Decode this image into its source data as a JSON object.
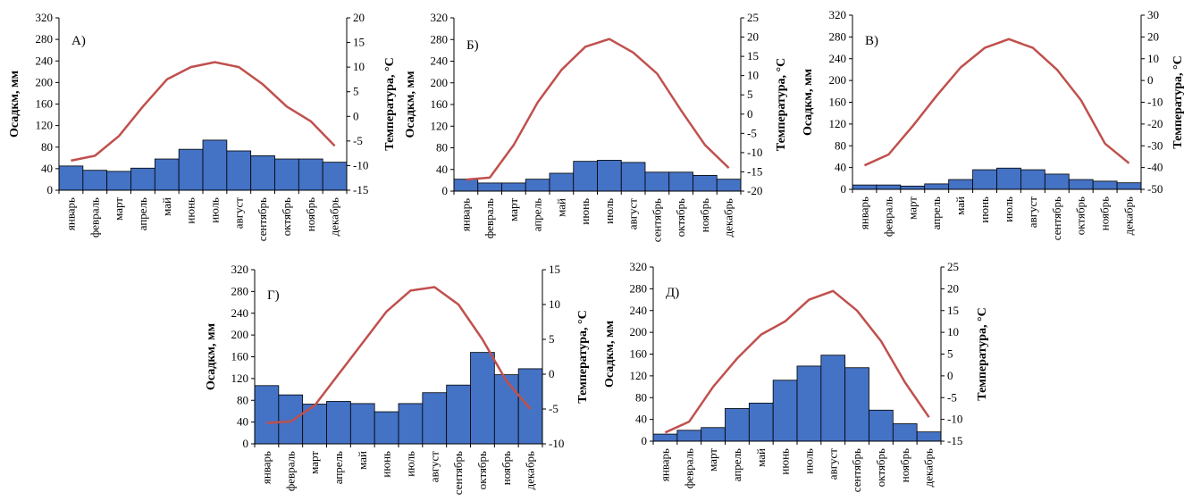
{
  "chart_data": [
    {
      "type": "bar+line",
      "panel_label": "А)",
      "categories": [
        "январь",
        "февраль",
        "март",
        "апрель",
        "май",
        "июнь",
        "июль",
        "август",
        "сентябрь",
        "октябрь",
        "ноябрь",
        "декабрь"
      ],
      "series": [
        {
          "name": "Осадкм, мм",
          "type": "bar",
          "axis": "left",
          "values": [
            45,
            37,
            35,
            41,
            58,
            76,
            93,
            73,
            64,
            58,
            58,
            52
          ]
        },
        {
          "name": "Температура, °С",
          "type": "line",
          "axis": "right",
          "values": [
            -9,
            -8,
            -4,
            2,
            7.5,
            10,
            11,
            10,
            6.5,
            2,
            -1,
            -6
          ]
        }
      ],
      "ylabel": "Осадкм, мм",
      "y2label": "Температура, °С",
      "ylim": [
        0,
        320
      ],
      "yticks": [
        0,
        40,
        80,
        120,
        160,
        200,
        240,
        280,
        320
      ],
      "y2lim": [
        -15,
        20
      ],
      "y2ticks": [
        -15,
        -10,
        -5,
        0,
        5,
        10,
        15,
        20
      ],
      "bar_color": "#4472c4",
      "line_color": "#c0504d"
    },
    {
      "type": "bar+line",
      "panel_label": "Б)",
      "categories": [
        "январь",
        "февраль",
        "март",
        "апрель",
        "май",
        "июнь",
        "июль",
        "август",
        "сентябрь",
        "октябрь",
        "ноябрь",
        "декабрь"
      ],
      "series": [
        {
          "name": "Осадкм, мм",
          "type": "bar",
          "axis": "left",
          "values": [
            22,
            15,
            15,
            22,
            33,
            55,
            57,
            53,
            35,
            35,
            29,
            22
          ]
        },
        {
          "name": "Температура, °С",
          "type": "line",
          "axis": "right",
          "values": [
            -17,
            -16.5,
            -8,
            3,
            11.5,
            17.5,
            19.5,
            16,
            10.5,
            1,
            -8,
            -14
          ]
        }
      ],
      "ylabel": "Осадкм, мм",
      "y2label": "Температура, °С",
      "ylim": [
        0,
        320
      ],
      "yticks": [
        0,
        40,
        80,
        120,
        160,
        200,
        240,
        280,
        320
      ],
      "y2lim": [
        -20,
        25
      ],
      "y2ticks": [
        -20,
        -15,
        -10,
        -5,
        0,
        5,
        10,
        15,
        20,
        25
      ],
      "bar_color": "#4472c4",
      "line_color": "#c0504d"
    },
    {
      "type": "bar+line",
      "panel_label": "В)",
      "categories": [
        "январь",
        "февраль",
        "март",
        "апрель",
        "май",
        "июнь",
        "июль",
        "август",
        "сентябрь",
        "октябрь",
        "ноябрь",
        "декабрь"
      ],
      "series": [
        {
          "name": "Осадкм, мм",
          "type": "bar",
          "axis": "left",
          "values": [
            8,
            8,
            6,
            10,
            18,
            36,
            39,
            36,
            28,
            18,
            15,
            12
          ]
        },
        {
          "name": "Температура, °С",
          "type": "line",
          "axis": "right",
          "values": [
            -39,
            -34,
            -21,
            -7,
            6,
            15,
            19,
            15,
            5,
            -9,
            -29,
            -38
          ]
        }
      ],
      "ylabel": "Осадкм, мм",
      "y2label": "Температура, °С",
      "ylim": [
        0,
        320
      ],
      "yticks": [
        0,
        40,
        80,
        120,
        160,
        200,
        240,
        280,
        320
      ],
      "y2lim": [
        -50,
        30
      ],
      "y2ticks": [
        -50,
        -40,
        -30,
        -20,
        -10,
        0,
        10,
        20,
        30
      ],
      "bar_color": "#4472c4",
      "line_color": "#c0504d"
    },
    {
      "type": "bar+line",
      "panel_label": "Г)",
      "categories": [
        "январь",
        "февраль",
        "март",
        "апрель",
        "май",
        "июнь",
        "июль",
        "август",
        "сентябрь",
        "октябрь",
        "ноябрь",
        "декабрь"
      ],
      "series": [
        {
          "name": "Осадкм, мм",
          "type": "bar",
          "axis": "left",
          "values": [
            107,
            90,
            73,
            78,
            74,
            59,
            74,
            94,
            108,
            168,
            127,
            138
          ]
        },
        {
          "name": "Температура, °С",
          "type": "line",
          "axis": "right",
          "values": [
            -7,
            -6.8,
            -4.5,
            0,
            4.5,
            9,
            12,
            12.5,
            10,
            5,
            -1,
            -5
          ]
        }
      ],
      "ylabel": "Осадкм, мм",
      "y2label": "Температура, °С",
      "ylim": [
        0,
        320
      ],
      "yticks": [
        0,
        40,
        80,
        120,
        160,
        200,
        240,
        280,
        320
      ],
      "y2lim": [
        -10,
        15
      ],
      "y2ticks": [
        -10,
        -5,
        0,
        5,
        10,
        15
      ],
      "bar_color": "#4472c4",
      "line_color": "#c0504d"
    },
    {
      "type": "bar+line",
      "panel_label": "Д)",
      "categories": [
        "январь",
        "февраль",
        "март",
        "апрель",
        "май",
        "июнь",
        "июль",
        "август",
        "сентябрь",
        "октябрь",
        "ноябрь",
        "декабрь"
      ],
      "series": [
        {
          "name": "Осадкм, мм",
          "type": "bar",
          "axis": "left",
          "values": [
            13,
            20,
            25,
            60,
            70,
            112,
            138,
            158,
            135,
            57,
            32,
            17
          ]
        },
        {
          "name": "Температура, °С",
          "type": "line",
          "axis": "right",
          "values": [
            -13,
            -10.5,
            -2.5,
            4,
            9.5,
            12.5,
            17.5,
            19.5,
            15,
            8,
            -1.5,
            -9.5
          ]
        }
      ],
      "ylabel": "Осадкм, мм",
      "y2label": "Температура, °С",
      "ylim": [
        0,
        320
      ],
      "yticks": [
        0,
        40,
        80,
        120,
        160,
        200,
        240,
        280,
        320
      ],
      "y2lim": [
        -15,
        25
      ],
      "y2ticks": [
        -15,
        -10,
        -5,
        0,
        5,
        10,
        15,
        20,
        25
      ],
      "bar_color": "#4472c4",
      "line_color": "#c0504d"
    }
  ]
}
